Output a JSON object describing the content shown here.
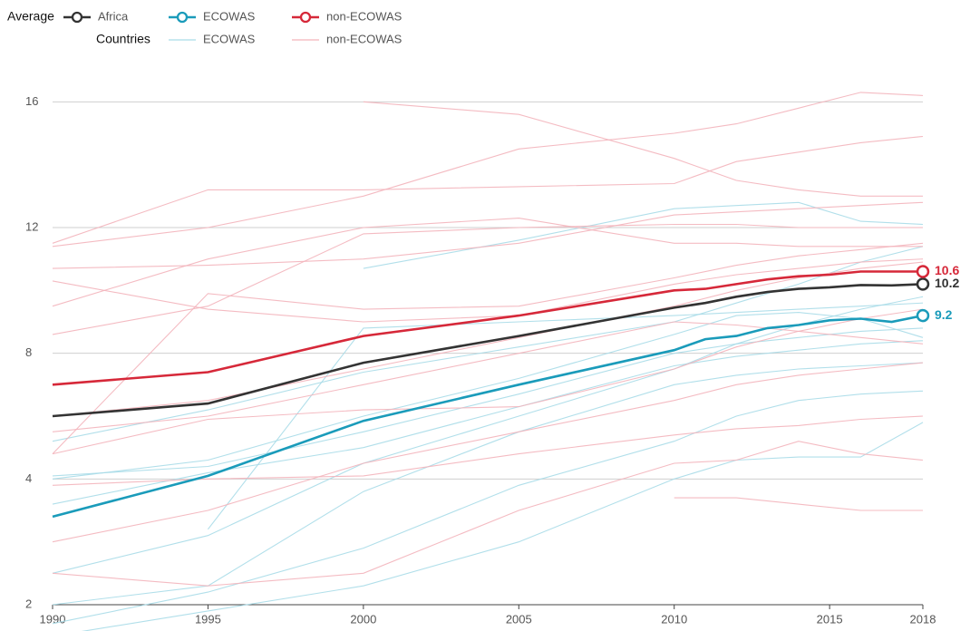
{
  "chart_data": {
    "type": "line",
    "legend": {
      "average": "Average",
      "countries": "Countries"
    },
    "x": [
      1990,
      1995,
      2000,
      2005,
      2010,
      2011,
      2012,
      2013,
      2014,
      2015,
      2016,
      2017,
      2018
    ],
    "xlim": [
      1990,
      2018
    ],
    "xticks": [
      1990,
      1995,
      2000,
      2005,
      2010,
      2015,
      2018
    ],
    "ylim": [
      2,
      16.5
    ],
    "yticks": [
      2,
      4,
      8,
      12,
      16
    ],
    "grid": true,
    "series": [
      {
        "name": "Africa",
        "color": "#333333",
        "values": [
          6.0,
          6.4,
          7.7,
          8.55,
          9.45,
          9.6,
          9.8,
          9.95,
          10.05,
          10.1,
          10.17,
          10.16,
          10.2
        ]
      },
      {
        "name": "ECOWAS",
        "color": "#1a9bba",
        "values": [
          3.4,
          4.1,
          5.85,
          7.0,
          8.1,
          8.45,
          8.55,
          8.8,
          8.9,
          9.05,
          9.1,
          9.0,
          9.2
        ]
      },
      {
        "name": "non-ECOWAS",
        "color": "#d62839",
        "values": [
          7.0,
          7.4,
          8.55,
          9.2,
          10.0,
          10.05,
          10.2,
          10.35,
          10.45,
          10.5,
          10.6,
          10.6,
          10.6
        ]
      }
    ],
    "country_x": [
      1990,
      1995,
      2000,
      2005,
      2010,
      2012,
      2014,
      2016,
      2018
    ],
    "country_groups": [
      {
        "name": "ECOWAS",
        "color": "#a9dce8",
        "series": [
          [
            1.5,
            1.9,
            2.3,
            3.0,
            4.0,
            4.6,
            4.7,
            4.7,
            5.8
          ],
          [
            1.7,
            2.2,
            2.9,
            3.9,
            5.2,
            6.0,
            6.5,
            6.7,
            6.8
          ],
          [
            2.0,
            2.3,
            3.8,
            5.5,
            7.0,
            7.3,
            7.5,
            7.6,
            7.7
          ],
          [
            3.6,
            4.2,
            5.0,
            6.3,
            7.6,
            7.9,
            8.1,
            8.3,
            8.4
          ],
          [
            4.1,
            4.4,
            5.5,
            6.7,
            8.0,
            8.3,
            8.5,
            8.7,
            8.8
          ],
          [
            null,
            3.2,
            8.8,
            9.0,
            9.2,
            9.3,
            9.4,
            9.5,
            9.6
          ],
          [
            null,
            null,
            10.7,
            11.6,
            12.6,
            12.7,
            12.8,
            12.2,
            12.1
          ],
          [
            5.2,
            6.2,
            7.4,
            8.2,
            9.0,
            9.6,
            10.2,
            10.9,
            11.4
          ],
          [
            2.5,
            3.1,
            4.5,
            6.0,
            7.5,
            8.3,
            8.9,
            9.4,
            9.8
          ],
          [
            4.0,
            4.6,
            6.0,
            7.2,
            8.6,
            9.2,
            9.3,
            9.1,
            8.5
          ]
        ]
      },
      {
        "name": "non-ECOWAS",
        "color": "#f3b4bb",
        "series": [
          [
            null,
            null,
            16.0,
            15.6,
            14.2,
            13.5,
            13.2,
            13.0,
            13.0
          ],
          [
            11.5,
            13.2,
            13.2,
            13.3,
            13.4,
            14.1,
            14.4,
            14.7,
            14.9
          ],
          [
            11.4,
            12.0,
            13.0,
            14.5,
            15.0,
            15.3,
            15.8,
            16.3,
            16.2
          ],
          [
            10.7,
            10.8,
            11.0,
            11.5,
            12.4,
            12.5,
            12.6,
            12.7,
            12.8
          ],
          [
            10.3,
            9.4,
            9.0,
            9.2,
            10.2,
            10.5,
            10.7,
            10.9,
            11.0
          ],
          [
            4.8,
            9.9,
            9.4,
            9.5,
            10.4,
            10.8,
            11.1,
            11.3,
            11.5
          ],
          [
            6.0,
            6.5,
            7.5,
            8.5,
            9.5,
            10.0,
            10.4,
            10.7,
            10.9
          ],
          [
            3.9,
            4.0,
            4.1,
            4.8,
            5.4,
            5.6,
            5.7,
            5.9,
            6.0
          ],
          [
            2.5,
            2.3,
            2.5,
            3.5,
            4.5,
            4.6,
            5.2,
            4.8,
            4.6
          ],
          [
            null,
            null,
            null,
            null,
            3.7,
            3.7,
            3.6,
            3.5,
            3.5
          ],
          [
            5.5,
            6.0,
            7.0,
            8.0,
            9.0,
            8.9,
            8.7,
            8.5,
            8.3
          ],
          [
            3.0,
            3.5,
            4.5,
            5.5,
            6.5,
            7.0,
            7.3,
            7.5,
            7.7
          ],
          [
            9.5,
            11.0,
            12.0,
            12.3,
            11.5,
            11.5,
            11.4,
            11.4,
            11.4
          ],
          [
            8.6,
            9.5,
            11.8,
            12.0,
            12.1,
            12.1,
            12.0,
            12.0,
            12.0
          ],
          [
            4.8,
            5.9,
            6.2,
            6.3,
            7.5,
            8.2,
            8.7,
            9.1,
            9.4
          ]
        ]
      }
    ]
  }
}
